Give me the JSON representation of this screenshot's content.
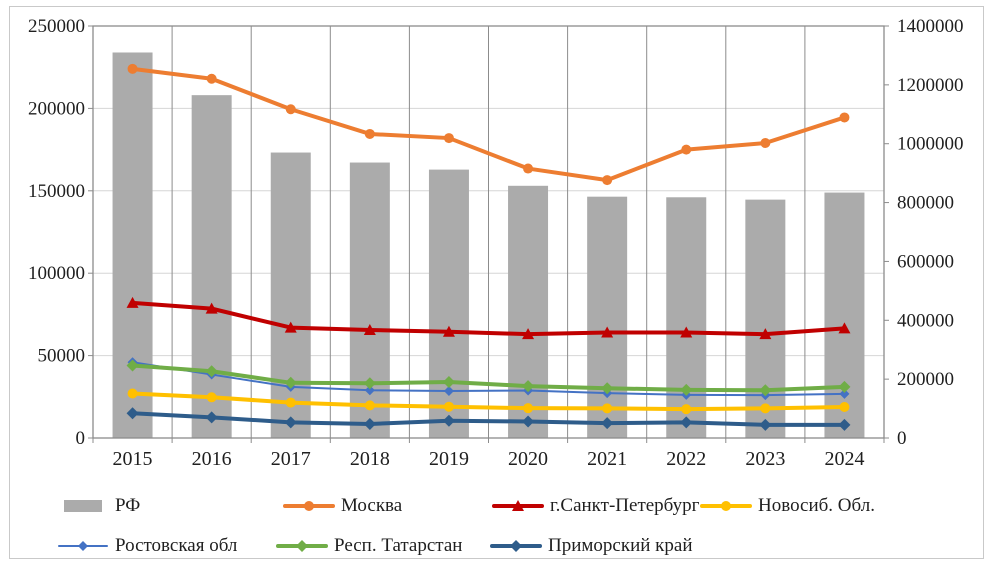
{
  "figure": {
    "background": "#ffffff",
    "frame_border_color": "#c9c9c9",
    "text_color": "#1f1f1f",
    "gridline_color_h": "#d6d6d6",
    "gridline_color_v": "#8c8c8c",
    "axis_border_color": "#8c8c8c"
  },
  "chart_data": {
    "type": "combo bar+line, dual axis",
    "categories": [
      "2015",
      "2016",
      "2017",
      "2018",
      "2019",
      "2020",
      "2021",
      "2022",
      "2023",
      "2024"
    ],
    "left_axis": {
      "range": [
        0,
        250000
      ],
      "ticks": [
        0,
        50000,
        100000,
        150000,
        200000,
        250000
      ]
    },
    "right_axis": {
      "range": [
        0,
        1400000
      ],
      "ticks": [
        0,
        200000,
        400000,
        600000,
        800000,
        1000000,
        1200000,
        1400000
      ]
    },
    "grid": {
      "horizontal": true,
      "vertical": true
    },
    "legend_position": "bottom",
    "series": [
      {
        "name": "РФ",
        "kind": "bar",
        "axis": "right",
        "color": "#ababab",
        "marker": "none",
        "values": [
          1310000,
          1165000,
          970000,
          936000,
          912000,
          857000,
          820000,
          818000,
          810000,
          834000
        ]
      },
      {
        "name": "Москва",
        "kind": "line",
        "axis": "left",
        "color": "#ed7d31",
        "marker": "circle",
        "line_width": 4,
        "values": [
          224000,
          218000,
          199500,
          184500,
          182000,
          163500,
          156500,
          175000,
          179000,
          194500
        ]
      },
      {
        "name": "г.Санкт-Петербург",
        "kind": "line",
        "axis": "left",
        "color": "#c00000",
        "marker": "triangle",
        "line_width": 4,
        "values": [
          82000,
          78500,
          67000,
          65500,
          64500,
          63000,
          64000,
          64000,
          63000,
          66500
        ]
      },
      {
        "name": "Новосиб. Обл.",
        "kind": "line",
        "axis": "left",
        "color": "#ffc000",
        "marker": "circle",
        "line_width": 4,
        "values": [
          27000,
          24700,
          21500,
          19800,
          19000,
          18100,
          18000,
          17500,
          18000,
          18800
        ]
      },
      {
        "name": "Ростовская обл",
        "kind": "line",
        "axis": "left",
        "color": "#4472c4",
        "marker": "diamond",
        "line_width": 2,
        "values": [
          46000,
          38500,
          31000,
          29000,
          28500,
          28800,
          27200,
          26200,
          26000,
          26800
        ]
      },
      {
        "name": "Респ. Татарстан",
        "kind": "line",
        "axis": "left",
        "color": "#70ad47",
        "marker": "diamond",
        "line_width": 4,
        "values": [
          44000,
          40500,
          33500,
          33200,
          34000,
          31500,
          30200,
          29200,
          29000,
          31000
        ]
      },
      {
        "name": "Приморский край",
        "kind": "line",
        "axis": "left",
        "color": "#2e5c8a",
        "marker": "diamond",
        "line_width": 4,
        "values": [
          15000,
          12500,
          9500,
          8500,
          10500,
          10000,
          9000,
          9500,
          8000,
          8000
        ]
      }
    ],
    "legend_rows": [
      [
        "РФ",
        "Москва",
        "г.Санкт-Петербург",
        "Новосиб. Обл."
      ],
      [
        "Ростовская обл",
        "Респ. Татарстан",
        "Приморский край"
      ]
    ]
  }
}
